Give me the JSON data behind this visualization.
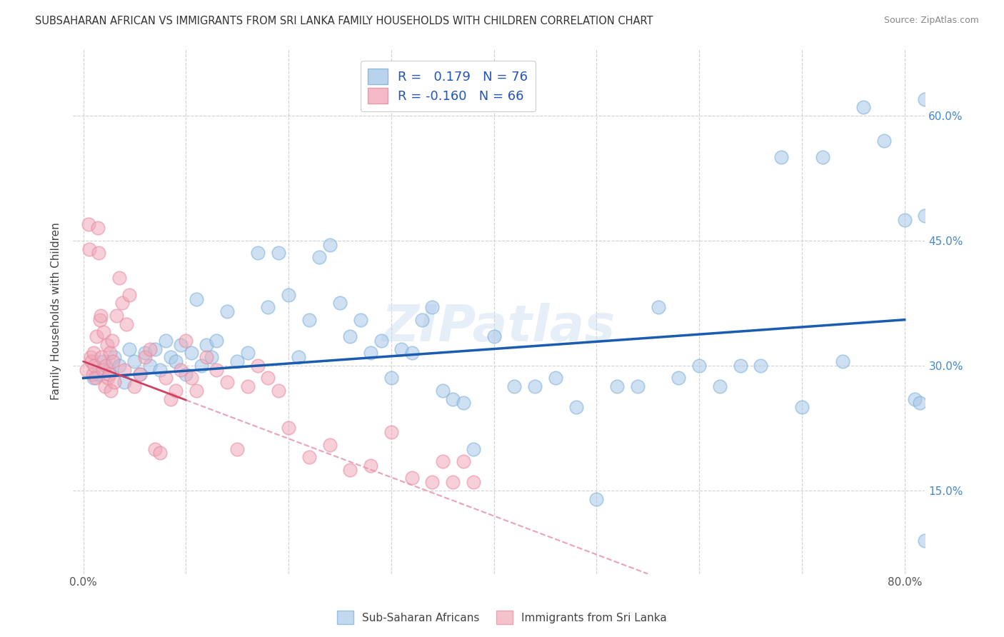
{
  "title": "SUBSAHARAN AFRICAN VS IMMIGRANTS FROM SRI LANKA FAMILY HOUSEHOLDS WITH CHILDREN CORRELATION CHART",
  "source": "Source: ZipAtlas.com",
  "ylabel": "Family Households with Children",
  "x_tick_labels": [
    "0.0%",
    "",
    "",
    "",
    "",
    "",
    "",
    "",
    "80.0%"
  ],
  "x_tick_values": [
    0.0,
    10.0,
    20.0,
    30.0,
    40.0,
    50.0,
    60.0,
    70.0,
    80.0
  ],
  "y_tick_labels": [
    "15.0%",
    "30.0%",
    "45.0%",
    "60.0%"
  ],
  "y_tick_values": [
    15.0,
    30.0,
    45.0,
    60.0
  ],
  "xlim": [
    -1.0,
    82.0
  ],
  "ylim": [
    5.0,
    68.0
  ],
  "blue_color": "#a8c8e8",
  "pink_color": "#f0a8b8",
  "blue_edge_color": "#7ab0d8",
  "pink_edge_color": "#e888a0",
  "blue_line_color": "#1a5cb0",
  "pink_line_color": "#d04060",
  "pink_dash_color": "#e898b0",
  "legend_blue_label": "R =   0.179   N = 76",
  "legend_pink_label": "R = -0.160   N = 66",
  "watermark": "ZIPatlas",
  "blue_x": [
    1.0,
    1.5,
    2.0,
    2.5,
    3.0,
    3.5,
    4.0,
    4.5,
    5.0,
    5.5,
    6.0,
    6.5,
    7.0,
    7.5,
    8.0,
    8.5,
    9.0,
    9.5,
    10.0,
    10.5,
    11.0,
    11.5,
    12.0,
    12.5,
    13.0,
    14.0,
    15.0,
    16.0,
    17.0,
    18.0,
    19.0,
    20.0,
    21.0,
    22.0,
    23.0,
    24.0,
    25.0,
    26.0,
    27.0,
    28.0,
    29.0,
    30.0,
    31.0,
    32.0,
    33.0,
    34.0,
    35.0,
    36.0,
    37.0,
    38.0,
    40.0,
    42.0,
    44.0,
    46.0,
    48.0,
    50.0,
    52.0,
    54.0,
    56.0,
    58.0,
    60.0,
    62.0,
    64.0,
    66.0,
    68.0,
    70.0,
    72.0,
    74.0,
    76.0,
    78.0,
    80.0,
    81.0,
    81.5,
    82.0,
    82.0,
    82.0
  ],
  "blue_y": [
    28.5,
    29.0,
    30.5,
    29.5,
    31.0,
    30.0,
    28.0,
    32.0,
    30.5,
    29.0,
    31.5,
    30.0,
    32.0,
    29.5,
    33.0,
    31.0,
    30.5,
    32.5,
    29.0,
    31.5,
    38.0,
    30.0,
    32.5,
    31.0,
    33.0,
    36.5,
    30.5,
    31.5,
    43.5,
    37.0,
    43.5,
    38.5,
    31.0,
    35.5,
    43.0,
    44.5,
    37.5,
    33.5,
    35.5,
    31.5,
    33.0,
    28.5,
    32.0,
    31.5,
    35.5,
    37.0,
    27.0,
    26.0,
    25.5,
    20.0,
    33.5,
    27.5,
    27.5,
    28.5,
    25.0,
    14.0,
    27.5,
    27.5,
    37.0,
    28.5,
    30.0,
    27.5,
    30.0,
    30.0,
    55.0,
    25.0,
    55.0,
    30.5,
    61.0,
    57.0,
    47.5,
    26.0,
    25.5,
    62.0,
    9.0,
    48.0
  ],
  "pink_x": [
    0.3,
    0.5,
    0.6,
    0.7,
    0.8,
    0.9,
    1.0,
    1.1,
    1.2,
    1.3,
    1.4,
    1.5,
    1.6,
    1.7,
    1.8,
    1.9,
    2.0,
    2.1,
    2.2,
    2.3,
    2.4,
    2.5,
    2.6,
    2.7,
    2.8,
    2.9,
    3.0,
    3.2,
    3.5,
    3.8,
    4.0,
    4.2,
    4.5,
    5.0,
    5.5,
    6.0,
    6.5,
    7.0,
    7.5,
    8.0,
    8.5,
    9.0,
    9.5,
    10.0,
    10.5,
    11.0,
    12.0,
    13.0,
    14.0,
    15.0,
    16.0,
    17.0,
    18.0,
    19.0,
    20.0,
    22.0,
    24.0,
    26.0,
    28.0,
    30.0,
    32.0,
    34.0,
    35.0,
    36.0,
    37.0,
    38.0
  ],
  "pink_y": [
    29.5,
    47.0,
    44.0,
    31.0,
    30.5,
    29.0,
    31.5,
    30.0,
    28.5,
    33.5,
    46.5,
    43.5,
    35.5,
    36.0,
    31.0,
    29.5,
    34.0,
    27.5,
    30.0,
    32.5,
    28.5,
    29.0,
    31.5,
    27.0,
    33.0,
    30.5,
    28.0,
    36.0,
    40.5,
    37.5,
    29.5,
    35.0,
    38.5,
    27.5,
    29.0,
    31.0,
    32.0,
    20.0,
    19.5,
    28.5,
    26.0,
    27.0,
    29.5,
    33.0,
    28.5,
    27.0,
    31.0,
    29.5,
    28.0,
    20.0,
    27.5,
    30.0,
    28.5,
    27.0,
    22.5,
    19.0,
    20.5,
    17.5,
    18.0,
    22.0,
    16.5,
    16.0,
    18.5,
    16.0,
    18.5,
    16.0
  ],
  "blue_trend_x0": 0.0,
  "blue_trend_x1": 80.0,
  "blue_trend_y0": 28.5,
  "blue_trend_y1": 35.5,
  "pink_trend_x0": 0.0,
  "pink_trend_x1": 55.0,
  "pink_trend_y0": 30.5,
  "pink_trend_y1": 5.0,
  "pink_solid_x1": 10.0,
  "pink_solid_y1": 25.8
}
